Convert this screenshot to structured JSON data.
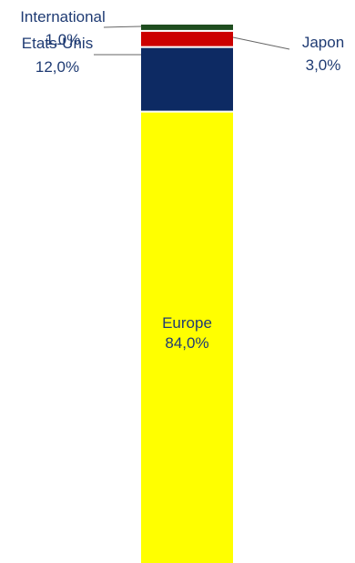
{
  "chart_data": {
    "type": "bar",
    "stacked": true,
    "orientation": "vertical",
    "unit": "%",
    "categories": [
      ""
    ],
    "series": [
      {
        "name": "Europe",
        "values": [
          84.0
        ],
        "label": "Europe",
        "value_label": "84,0%",
        "color": "#ffff00"
      },
      {
        "name": "Etats-Unis",
        "values": [
          12.0
        ],
        "label": "Etats-Unis",
        "value_label": "12,0%",
        "color": "#0d2a63"
      },
      {
        "name": "Japon",
        "values": [
          3.0
        ],
        "label": "Japon",
        "value_label": "3,0%",
        "color": "#cc0000"
      },
      {
        "name": "International",
        "values": [
          1.0
        ],
        "label": "International",
        "value_label": "1,0%",
        "color": "#1f4d1f"
      }
    ],
    "title": "",
    "xlabel": "",
    "ylabel": "",
    "ylim": [
      0,
      100
    ],
    "grid": false,
    "legend": "none"
  }
}
